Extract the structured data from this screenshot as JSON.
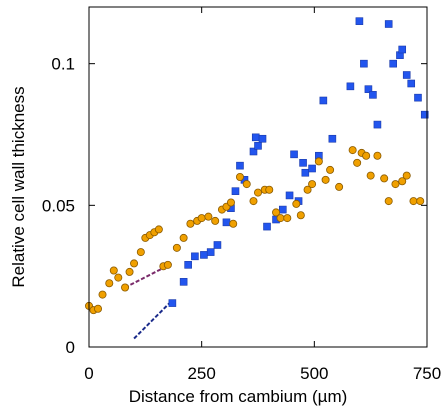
{
  "chart_data": {
    "type": "scatter",
    "title": "",
    "xlabel": "Distance from cambium (µm)",
    "ylabel": "Relative cell wall thickness",
    "xlim": [
      0,
      750
    ],
    "ylim": [
      0,
      0.12
    ],
    "x_ticks": [
      0,
      250,
      500,
      750
    ],
    "x_tick_labels": [
      "0",
      "250",
      "500",
      "750"
    ],
    "y_ticks": [
      0,
      0.05,
      0.1
    ],
    "y_tick_labels": [
      "0",
      "0.05",
      "0.1"
    ],
    "grid": false,
    "legend": "none",
    "series": [
      {
        "marker": "square",
        "color": "#2255ee",
        "points": [
          [
            185,
            0.0155
          ],
          [
            210,
            0.023
          ],
          [
            220,
            0.029
          ],
          [
            235,
            0.032
          ],
          [
            255,
            0.0325
          ],
          [
            270,
            0.0335
          ],
          [
            285,
            0.036
          ],
          [
            305,
            0.044
          ],
          [
            315,
            0.049
          ],
          [
            325,
            0.055
          ],
          [
            335,
            0.064
          ],
          [
            345,
            0.059
          ],
          [
            365,
            0.069
          ],
          [
            370,
            0.074
          ],
          [
            385,
            0.0735
          ],
          [
            375,
            0.071
          ],
          [
            395,
            0.0425
          ],
          [
            415,
            0.045
          ],
          [
            430,
            0.0485
          ],
          [
            445,
            0.0535
          ],
          [
            465,
            0.0515
          ],
          [
            455,
            0.068
          ],
          [
            475,
            0.065
          ],
          [
            480,
            0.0615
          ],
          [
            495,
            0.063
          ],
          [
            510,
            0.0675
          ],
          [
            520,
            0.087
          ],
          [
            540,
            0.0735
          ],
          [
            580,
            0.092
          ],
          [
            600,
            0.115
          ],
          [
            610,
            0.1
          ],
          [
            620,
            0.091
          ],
          [
            630,
            0.089
          ],
          [
            640,
            0.0785
          ],
          [
            665,
            0.114
          ],
          [
            675,
            0.1
          ],
          [
            690,
            0.103
          ],
          [
            695,
            0.105
          ],
          [
            705,
            0.096
          ],
          [
            715,
            0.093
          ],
          [
            730,
            0.088
          ],
          [
            745,
            0.082
          ]
        ]
      },
      {
        "marker": "circle",
        "color": "#f0a000",
        "points": [
          [
            0,
            0.0145
          ],
          [
            10,
            0.013
          ],
          [
            20,
            0.0135
          ],
          [
            30,
            0.0185
          ],
          [
            45,
            0.0225
          ],
          [
            55,
            0.027
          ],
          [
            65,
            0.0245
          ],
          [
            80,
            0.021
          ],
          [
            90,
            0.0265
          ],
          [
            100,
            0.0295
          ],
          [
            115,
            0.0335
          ],
          [
            125,
            0.0385
          ],
          [
            135,
            0.0395
          ],
          [
            145,
            0.0405
          ],
          [
            155,
            0.0415
          ],
          [
            165,
            0.0285
          ],
          [
            175,
            0.029
          ],
          [
            195,
            0.035
          ],
          [
            210,
            0.0385
          ],
          [
            225,
            0.0435
          ],
          [
            240,
            0.0445
          ],
          [
            250,
            0.0455
          ],
          [
            265,
            0.046
          ],
          [
            280,
            0.0445
          ],
          [
            295,
            0.0485
          ],
          [
            305,
            0.0495
          ],
          [
            315,
            0.051
          ],
          [
            320,
            0.0435
          ],
          [
            335,
            0.06
          ],
          [
            350,
            0.0575
          ],
          [
            365,
            0.0515
          ],
          [
            375,
            0.0545
          ],
          [
            390,
            0.0555
          ],
          [
            400,
            0.0555
          ],
          [
            415,
            0.0475
          ],
          [
            425,
            0.0455
          ],
          [
            440,
            0.0455
          ],
          [
            460,
            0.0505
          ],
          [
            470,
            0.0465
          ],
          [
            485,
            0.0555
          ],
          [
            495,
            0.0575
          ],
          [
            510,
            0.0655
          ],
          [
            525,
            0.059
          ],
          [
            535,
            0.0625
          ],
          [
            555,
            0.0565
          ],
          [
            585,
            0.0695
          ],
          [
            595,
            0.065
          ],
          [
            605,
            0.0685
          ],
          [
            615,
            0.0675
          ],
          [
            625,
            0.0605
          ],
          [
            640,
            0.0675
          ],
          [
            655,
            0.0595
          ],
          [
            665,
            0.0515
          ],
          [
            680,
            0.0575
          ],
          [
            695,
            0.0585
          ],
          [
            705,
            0.0605
          ],
          [
            720,
            0.0515
          ],
          [
            735,
            0.0515
          ]
        ]
      }
    ],
    "lines": [
      {
        "style": "dashed",
        "color": "#1a2a8a",
        "from": [
          100,
          0.003
        ],
        "to": [
          185,
          0.0165
        ]
      },
      {
        "style": "dashed",
        "color": "#7a2a6a",
        "from": [
          80,
          0.021
        ],
        "to": [
          185,
          0.0295
        ]
      }
    ]
  }
}
